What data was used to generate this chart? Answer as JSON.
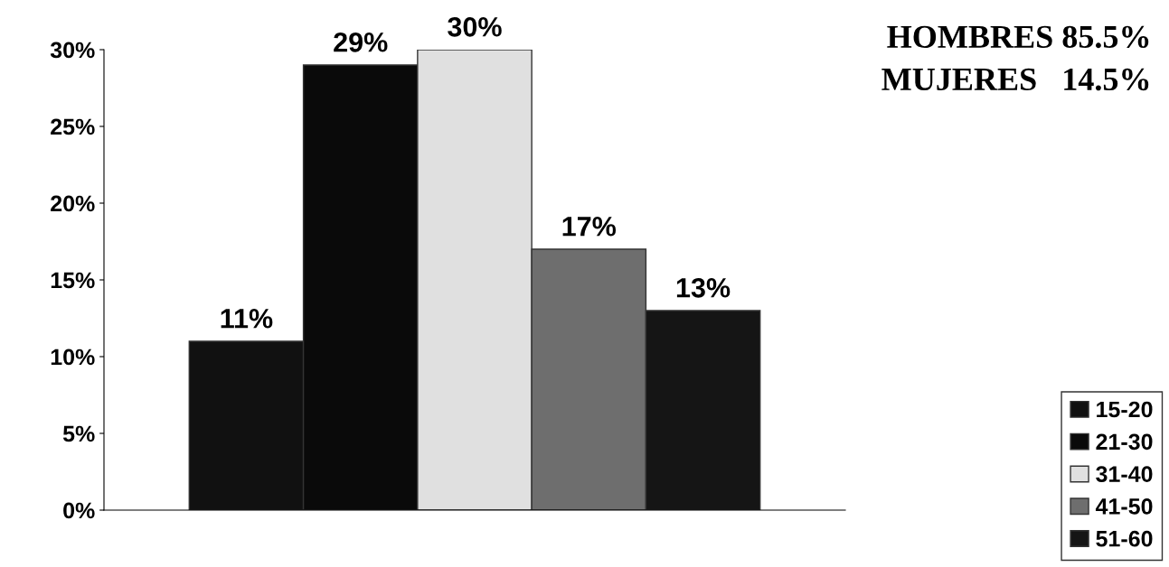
{
  "chart_data": {
    "type": "bar",
    "categories": [
      null
    ],
    "series": [
      {
        "name": "15-20",
        "color": "#111111",
        "values": [
          11
        ],
        "value_labels": [
          "11%"
        ]
      },
      {
        "name": "21-30",
        "color": "#0a0a0a",
        "values": [
          29
        ],
        "value_labels": [
          "29%"
        ]
      },
      {
        "name": "31-40",
        "color": "#e0e0e0",
        "values": [
          30
        ],
        "value_labels": [
          "30%"
        ]
      },
      {
        "name": "41-50",
        "color": "#6e6e6e",
        "values": [
          17
        ],
        "value_labels": [
          "17%"
        ]
      },
      {
        "name": "51-60",
        "color": "#151515",
        "values": [
          13
        ],
        "value_labels": [
          "13%"
        ]
      }
    ],
    "ylim": [
      0,
      30
    ],
    "yticks": [
      {
        "value": 0,
        "label": "0%"
      },
      {
        "value": 5,
        "label": "5%"
      },
      {
        "value": 10,
        "label": "10%"
      },
      {
        "value": 15,
        "label": "15%"
      },
      {
        "value": 20,
        "label": "20%"
      },
      {
        "value": 25,
        "label": "25%"
      },
      {
        "value": 30,
        "label": "30%"
      }
    ],
    "annotations": [
      "HOMBRES 85.5%",
      "MUJERES   14.5%"
    ],
    "legend": "bottom right",
    "grid": false
  }
}
